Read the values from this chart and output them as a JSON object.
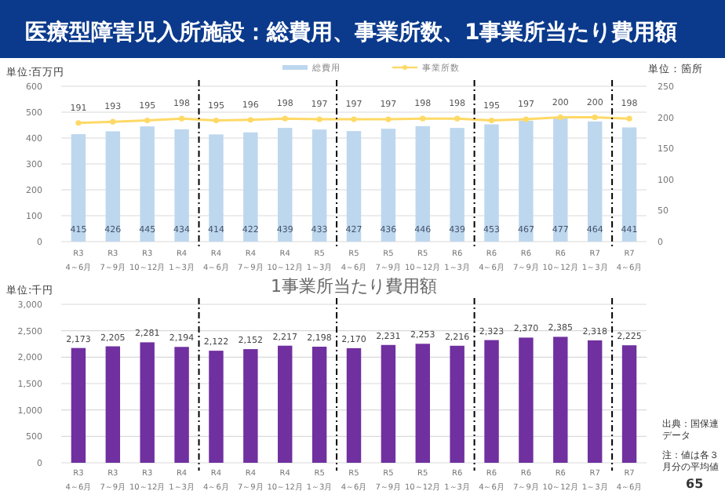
{
  "chart_data": [
    {
      "type": "bar",
      "title": "医療型障害児入所施設：総費用、事業所数、1事業所当たり費用額",
      "ylabel": "単位:百万円",
      "y2label": "単位：箇所",
      "categories": [
        "R3\n4～6月",
        "R3\n7～9月",
        "R3\n10～12月",
        "R4\n1～3月",
        "R4\n4～6月",
        "R4\n7～9月",
        "R4\n10～12月",
        "R5\n1～3月",
        "R5\n4～6月",
        "R5\n7～9月",
        "R5\n10～12月",
        "R6\n1～3月",
        "R6\n4～6月",
        "R6\n7～9月",
        "R6\n10～12月",
        "R7\n1～3月",
        "R7\n4～6月"
      ],
      "series": [
        {
          "name": "総費用",
          "type": "bar",
          "color": "#bdd7ee",
          "values": [
            415,
            426,
            445,
            434,
            414,
            422,
            439,
            433,
            427,
            436,
            446,
            439,
            453,
            467,
            477,
            464,
            441
          ]
        },
        {
          "name": "事業所数",
          "type": "line",
          "axis": "y2",
          "color": "#ffd966",
          "marker": "circle",
          "values": [
            191,
            193,
            195,
            198,
            195,
            196,
            198,
            197,
            197,
            197,
            198,
            198,
            195,
            197,
            200,
            200,
            198
          ]
        }
      ],
      "ylim": [
        0,
        600
      ],
      "yticks": [
        0,
        100,
        200,
        300,
        400,
        500,
        600
      ],
      "y2lim": [
        0,
        250
      ],
      "y2ticks": [
        0,
        50,
        100,
        150,
        200,
        250
      ],
      "data_labels": true,
      "grid": "y",
      "legend": "top"
    },
    {
      "type": "bar",
      "title": "1事業所当たり費用額",
      "ylabel": "単位:千円",
      "categories": [
        "R3\n4～6月",
        "R3\n7～9月",
        "R3\n10～12月",
        "R4\n1～3月",
        "R4\n4～6月",
        "R4\n7～9月",
        "R4\n10～12月",
        "R5\n1～3月",
        "R5\n4～6月",
        "R5\n7～9月",
        "R5\n10～12月",
        "R6\n1～3月",
        "R6\n4～6月",
        "R6\n7～9月",
        "R6\n10～12月",
        "R7\n1～3月",
        "R7\n4～6月"
      ],
      "series": [
        {
          "color": "#7030a0",
          "values": [
            2173,
            2205,
            2281,
            2194,
            2122,
            2152,
            2217,
            2198,
            2170,
            2231,
            2253,
            2216,
            2323,
            2370,
            2385,
            2318,
            2225
          ],
          "value_labels": [
            "2,173",
            "2,205",
            "2,281",
            "2,194",
            "2,122",
            "2,152",
            "2,217",
            "2,198",
            "2,170",
            "2,231",
            "2,253",
            "2,216",
            "2,323",
            "2,370",
            "2,385",
            "2,318",
            "2,225"
          ]
        }
      ],
      "ylim": [
        0,
        3000
      ],
      "yticks": [
        {
          "value": 0,
          "label": "0"
        },
        {
          "value": 500,
          "label": "500"
        },
        {
          "value": 1000,
          "label": "1,000"
        },
        {
          "value": 1500,
          "label": "1,500"
        },
        {
          "value": 2000,
          "label": "2,000"
        },
        {
          "value": 2500,
          "label": "2,500"
        },
        {
          "value": 3000,
          "label": "3,000"
        }
      ],
      "grid": "y",
      "annotations": [
        "出典：国保連データ",
        "注：値は各３月分の平均値",
        "65"
      ]
    }
  ]
}
